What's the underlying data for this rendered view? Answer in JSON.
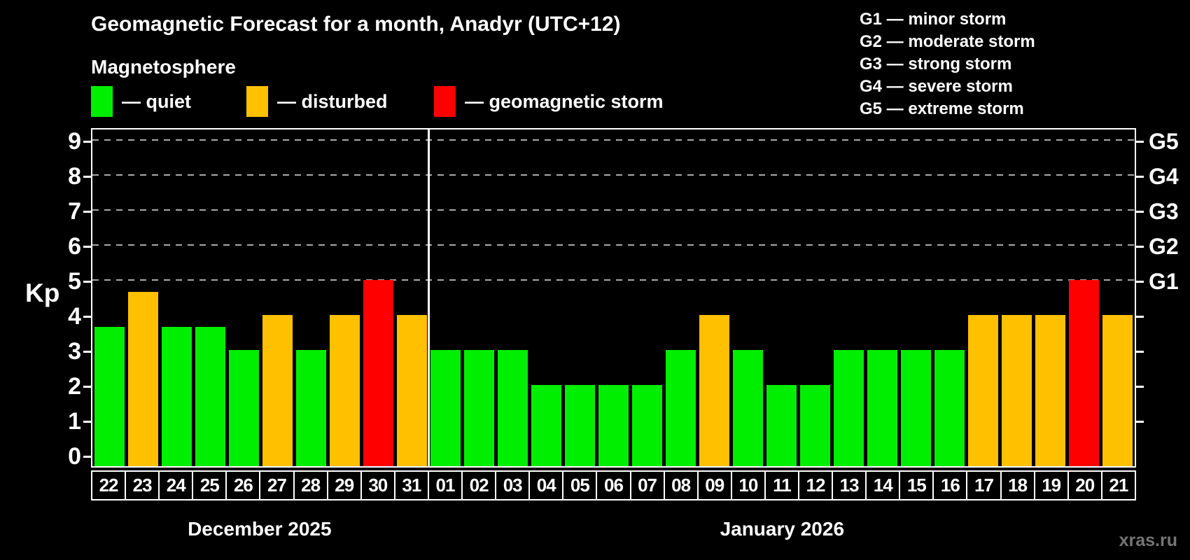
{
  "title": "Geomagnetic Forecast for a month, Anadyr (UTC+12)",
  "subtitle": "Magnetosphere",
  "legend": {
    "quiet": "— quiet",
    "disturbed": "— disturbed",
    "storm": "— geomagnetic storm"
  },
  "g_legend": [
    "G1 — minor storm",
    "G2 — moderate storm",
    "G3 — strong storm",
    "G4 — severe storm",
    "G5 — extreme storm"
  ],
  "axis": {
    "kp_label": "Kp",
    "kp_ticks": [
      0,
      1,
      2,
      3,
      4,
      5,
      6,
      7,
      8,
      9
    ],
    "g_ticks": [
      {
        "kp": 5,
        "label": "G1"
      },
      {
        "kp": 6,
        "label": "G2"
      },
      {
        "kp": 7,
        "label": "G3"
      },
      {
        "kp": 8,
        "label": "G4"
      },
      {
        "kp": 9,
        "label": "G5"
      }
    ]
  },
  "months": [
    {
      "label": "December 2025",
      "days": 10
    },
    {
      "label": "January 2026",
      "days": 21
    }
  ],
  "watermark": "xras.ru",
  "colors": {
    "quiet": "#00EE00",
    "disturbed": "#FFC000",
    "storm": "#FF0000",
    "grid": "#AAAAAA",
    "axis": "#FFFFFF",
    "background": "#000000"
  },
  "chart_data": {
    "type": "bar",
    "title": "Geomagnetic Forecast for a month, Anadyr (UTC+12)",
    "ylabel": "Kp",
    "ylim": [
      0,
      9.35
    ],
    "grid": "dashed horizontal lines at Kp 5,6,7,8,9 (G1–G5 levels)",
    "legend_position": "top",
    "categories": [
      "22",
      "23",
      "24",
      "25",
      "26",
      "27",
      "28",
      "29",
      "30",
      "31",
      "01",
      "02",
      "03",
      "04",
      "05",
      "06",
      "07",
      "08",
      "09",
      "10",
      "11",
      "12",
      "13",
      "14",
      "15",
      "16",
      "17",
      "18",
      "19",
      "20",
      "21"
    ],
    "month_of_category": [
      "Dec",
      "Dec",
      "Dec",
      "Dec",
      "Dec",
      "Dec",
      "Dec",
      "Dec",
      "Dec",
      "Dec",
      "Jan",
      "Jan",
      "Jan",
      "Jan",
      "Jan",
      "Jan",
      "Jan",
      "Jan",
      "Jan",
      "Jan",
      "Jan",
      "Jan",
      "Jan",
      "Jan",
      "Jan",
      "Jan",
      "Jan",
      "Jan",
      "Jan",
      "Jan",
      "Jan"
    ],
    "values": [
      3.67,
      4.67,
      3.67,
      3.67,
      3,
      4,
      3,
      4,
      5,
      4,
      3,
      3,
      3,
      2,
      2,
      2,
      2,
      3,
      4,
      3,
      2,
      2,
      3,
      3,
      3,
      3,
      4,
      4,
      4,
      5,
      4
    ],
    "statuses": [
      "quiet",
      "disturbed",
      "quiet",
      "quiet",
      "quiet",
      "disturbed",
      "quiet",
      "disturbed",
      "storm",
      "disturbed",
      "quiet",
      "quiet",
      "quiet",
      "quiet",
      "quiet",
      "quiet",
      "quiet",
      "quiet",
      "disturbed",
      "quiet",
      "quiet",
      "quiet",
      "quiet",
      "quiet",
      "quiet",
      "quiet",
      "disturbed",
      "disturbed",
      "disturbed",
      "storm",
      "disturbed"
    ]
  }
}
